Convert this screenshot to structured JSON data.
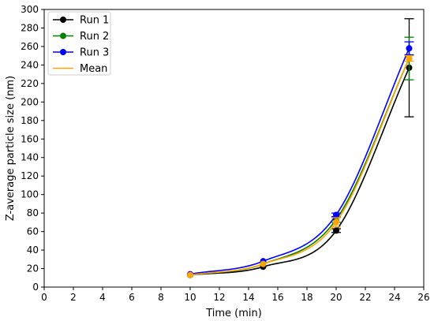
{
  "chart_data": {
    "type": "line",
    "xlabel": "Time (min)",
    "ylabel": "Z-average particle size (nm)",
    "xlim": [
      0,
      26
    ],
    "ylim": [
      0,
      300
    ],
    "xticks": [
      0,
      2,
      4,
      6,
      8,
      10,
      12,
      14,
      16,
      18,
      20,
      22,
      24,
      26
    ],
    "yticks": [
      0,
      20,
      40,
      60,
      80,
      100,
      120,
      140,
      160,
      180,
      200,
      220,
      240,
      260,
      280,
      300
    ],
    "grid": false,
    "legend_position": "top-left",
    "series": [
      {
        "name": "Run 1",
        "color": "#000000",
        "marker": "circle",
        "x": [
          10,
          15,
          20,
          25
        ],
        "y": [
          13,
          22,
          61,
          237
        ],
        "yerr": [
          null,
          null,
          2,
          53
        ]
      },
      {
        "name": "Run 2",
        "color": "#008000",
        "marker": "circle",
        "x": [
          10,
          15,
          20,
          25
        ],
        "y": [
          13,
          25,
          73,
          247
        ],
        "yerr": [
          null,
          null,
          3,
          23
        ]
      },
      {
        "name": "Run 3",
        "color": "#0000ff",
        "marker": "circle",
        "x": [
          10,
          15,
          20,
          25
        ],
        "y": [
          14,
          28,
          78,
          258
        ],
        "yerr": [
          null,
          null,
          2,
          7
        ]
      },
      {
        "name": "Mean",
        "color": "#ffa500",
        "marker": "circle",
        "x": [
          10,
          15,
          20,
          25
        ],
        "y": [
          13,
          25,
          70,
          247
        ],
        "yerr": [
          null,
          null,
          5,
          3
        ]
      }
    ]
  }
}
